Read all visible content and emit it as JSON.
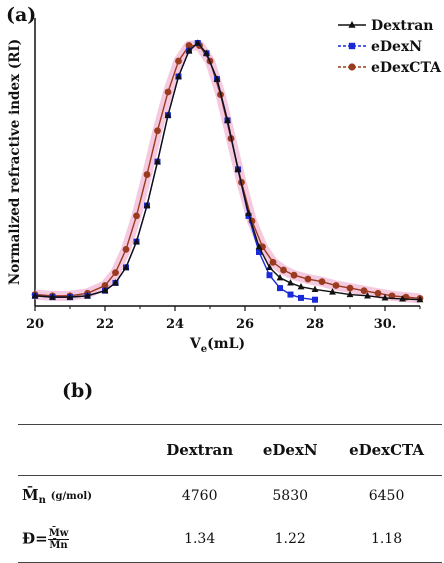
{
  "panel_a_label": "(a)",
  "panel_b_label": "(b)",
  "chart_data": {
    "type": "line",
    "ylabel": "Normalized refractive index (RI)",
    "xlabel_main": "V",
    "xlabel_sub": "e",
    "xlabel_unit": "(mL)",
    "xlim": [
      20,
      31
    ],
    "ylim": [
      0,
      1
    ],
    "x_ticks": [
      "20",
      "22",
      "24",
      "26",
      "28",
      "30."
    ],
    "legend_position": "top-right",
    "series": [
      {
        "name": "Dextran",
        "color": "#111111",
        "marker": "triangle",
        "x": [
          20,
          20.5,
          21,
          21.5,
          22,
          22.3,
          22.6,
          22.9,
          23.2,
          23.5,
          23.8,
          24.1,
          24.4,
          24.65,
          24.9,
          25.2,
          25.5,
          25.8,
          26.1,
          26.4,
          26.7,
          27,
          27.3,
          27.6,
          28,
          28.5,
          29,
          29.5,
          30,
          30.5,
          31
        ],
        "y": [
          0.02,
          0.015,
          0.015,
          0.02,
          0.04,
          0.07,
          0.13,
          0.23,
          0.37,
          0.54,
          0.72,
          0.87,
          0.97,
          1.0,
          0.96,
          0.86,
          0.7,
          0.51,
          0.34,
          0.21,
          0.13,
          0.09,
          0.07,
          0.055,
          0.045,
          0.035,
          0.025,
          0.02,
          0.012,
          0.008,
          0.005
        ]
      },
      {
        "name": "eDexN",
        "color": "#1a2ad8",
        "marker": "square",
        "x": [
          20,
          20.5,
          21,
          21.5,
          22,
          22.3,
          22.6,
          22.9,
          23.2,
          23.5,
          23.8,
          24.1,
          24.4,
          24.65,
          24.9,
          25.2,
          25.5,
          25.8,
          26.1,
          26.4,
          26.7,
          27,
          27.3,
          27.6,
          28
        ],
        "y": [
          0.02,
          0.015,
          0.015,
          0.02,
          0.04,
          0.07,
          0.13,
          0.23,
          0.37,
          0.54,
          0.72,
          0.87,
          0.97,
          1.0,
          0.96,
          0.86,
          0.7,
          0.51,
          0.33,
          0.19,
          0.1,
          0.05,
          0.025,
          0.012,
          0.005
        ]
      },
      {
        "name": "eDexCTA",
        "color": "#9a3a1e",
        "marker": "circle",
        "x": [
          20,
          20.5,
          21,
          21.5,
          22,
          22.3,
          22.6,
          22.9,
          23.2,
          23.5,
          23.8,
          24.1,
          24.4,
          24.7,
          25.0,
          25.3,
          25.6,
          25.9,
          26.2,
          26.5,
          26.8,
          27.1,
          27.4,
          27.8,
          28.2,
          28.6,
          29,
          29.4,
          29.8,
          30.2,
          30.6,
          31
        ],
        "y": [
          0.025,
          0.02,
          0.02,
          0.03,
          0.06,
          0.11,
          0.2,
          0.33,
          0.49,
          0.66,
          0.81,
          0.93,
          0.99,
          0.99,
          0.93,
          0.8,
          0.63,
          0.46,
          0.31,
          0.21,
          0.15,
          0.12,
          0.1,
          0.085,
          0.075,
          0.06,
          0.05,
          0.04,
          0.03,
          0.02,
          0.015,
          0.01
        ]
      }
    ]
  },
  "table": {
    "columns": [
      "Dextran",
      "eDexN",
      "eDexCTA"
    ],
    "rows": [
      {
        "symbol": "M̄",
        "sub": "n",
        "unit": "(g/mol)",
        "values": [
          "4760",
          "5830",
          "6450"
        ]
      },
      {
        "symbol": "Đ=",
        "frac_num": "M̄w",
        "frac_den": "M̄n",
        "values": [
          "1.34",
          "1.22",
          "1.18"
        ]
      }
    ]
  }
}
